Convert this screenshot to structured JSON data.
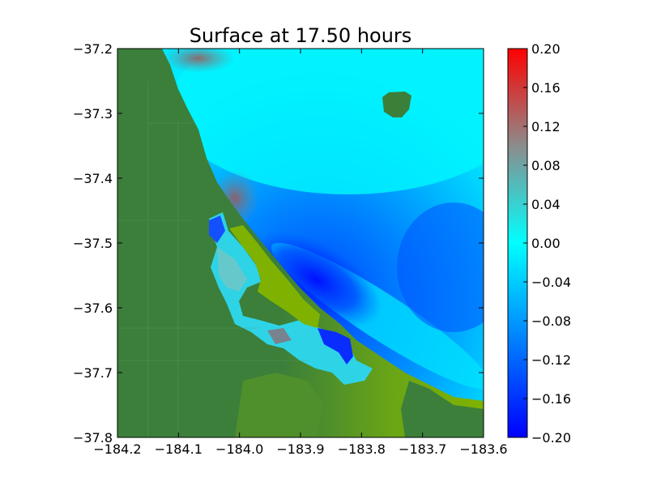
{
  "chart_data": {
    "type": "heatmap",
    "title": "Surface at 17.50 hours",
    "xlabel": "",
    "ylabel": "",
    "xlim": [
      -184.2,
      -183.6
    ],
    "ylim": [
      -37.8,
      -37.2
    ],
    "x_ticks": [
      -184.2,
      -184.1,
      -184.0,
      -183.9,
      -183.8,
      -183.7,
      -183.6
    ],
    "x_tick_labels": [
      "−184.2",
      "−184.1",
      "−184.0",
      "−183.9",
      "−183.8",
      "−183.7",
      "−183.6"
    ],
    "y_ticks": [
      -37.2,
      -37.3,
      -37.4,
      -37.5,
      -37.6,
      -37.7,
      -37.8
    ],
    "y_tick_labels": [
      "−37.2",
      "−37.3",
      "−37.4",
      "−37.5",
      "−37.6",
      "−37.7",
      "−37.8"
    ],
    "grid": false,
    "colorbar": {
      "vmin": -0.2,
      "vmax": 0.2,
      "ticks": [
        0.2,
        0.16,
        0.12,
        0.08,
        0.04,
        0.0,
        -0.04,
        -0.08,
        -0.12,
        -0.16,
        -0.2
      ],
      "tick_labels": [
        "0.20",
        "0.16",
        "0.12",
        "0.08",
        "0.04",
        "0.00",
        "−0.04",
        "−0.08",
        "−0.12",
        "−0.16",
        "−0.20"
      ],
      "colormap": [
        {
          "value": -0.2,
          "color": "#0000ff"
        },
        {
          "value": 0.0,
          "color": "#00ffff"
        },
        {
          "value": 0.1,
          "color": "#8c8c8c"
        },
        {
          "value": 0.2,
          "color": "#ff0000"
        }
      ]
    },
    "land_colors": {
      "deep": "#3b7f3a",
      "coastal": "#7fb200",
      "mid": "#5f9a1f"
    }
  }
}
